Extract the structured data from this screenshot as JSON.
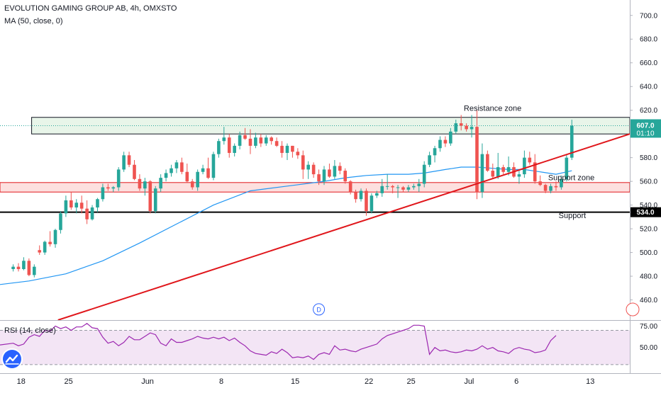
{
  "header": {
    "symbol_title": "EVOLUTION GAMING GROUP AB, 4h, OMXSTO",
    "indicator_ma": "MA (50, close, 0)",
    "indicator_rsi": "RSI (14, close)"
  },
  "colors": {
    "up": "#26a69a",
    "down": "#ef5350",
    "ma_line": "#2196f3",
    "trend_line": "#e0161b",
    "rsi_line": "#9c27b0",
    "rsi_band": "#f3e5f5",
    "resistance_fill": "#e8f5e9",
    "support_fill": "#fde0df",
    "last_price_bg": "#26a69a"
  },
  "chart_data": [
    {
      "type": "candlestick",
      "title": "EVOLUTION GAMING GROUP AB, 4h, OMXSTO",
      "y_ticks": [
        "700.0",
        "680.0",
        "660.0",
        "640.0",
        "620.0",
        "600.0",
        "580.0",
        "560.0",
        "540.0",
        "520.0",
        "500.0",
        "480.0",
        "460.0"
      ],
      "ylim": [
        443,
        713
      ],
      "x_ticks": [
        "18",
        "25",
        "Jun",
        "8",
        "15",
        "22",
        "25",
        "Jul",
        "6",
        "13"
      ],
      "x_tick_positions": [
        1.5,
        10.5,
        25.5,
        39.5,
        53.5,
        67.5,
        75.5,
        86.5,
        95.5,
        109.5
      ],
      "xlim": [
        -2.5,
        117
      ],
      "candles": [
        [
          0,
          486,
          490,
          484,
          488
        ],
        [
          1,
          488,
          491,
          484,
          486
        ],
        [
          2,
          486,
          496,
          485,
          493
        ],
        [
          3,
          493,
          495,
          480,
          481
        ],
        [
          4,
          481,
          490,
          479,
          488
        ],
        [
          5,
          502,
          506,
          498,
          500
        ],
        [
          6,
          500,
          510,
          498,
          509
        ],
        [
          7,
          509,
          518,
          505,
          507
        ],
        [
          8,
          507,
          520,
          504,
          519
        ],
        [
          9,
          519,
          535,
          516,
          533
        ],
        [
          10,
          533,
          548,
          530,
          544
        ],
        [
          11,
          544,
          551,
          536,
          538
        ],
        [
          12,
          538,
          545,
          533,
          542
        ],
        [
          13,
          542,
          548,
          533,
          537
        ],
        [
          14,
          537,
          544,
          524,
          528
        ],
        [
          15,
          528,
          540,
          527,
          538
        ],
        [
          16,
          538,
          546,
          534,
          545
        ],
        [
          17,
          545,
          558,
          543,
          555
        ],
        [
          18,
          555,
          558,
          552,
          554
        ],
        [
          19,
          554,
          556,
          551,
          555
        ],
        [
          20,
          555,
          572,
          552,
          570
        ],
        [
          21,
          570,
          585,
          568,
          582
        ],
        [
          22,
          582,
          585,
          572,
          574
        ],
        [
          23,
          574,
          578,
          561,
          562
        ],
        [
          24,
          562,
          566,
          552,
          554
        ],
        [
          25,
          554,
          563,
          548,
          560
        ],
        [
          26,
          560,
          561,
          533,
          535
        ],
        [
          27,
          535,
          556,
          533,
          554
        ],
        [
          28,
          554,
          566,
          551,
          563
        ],
        [
          29,
          563,
          570,
          560,
          567
        ],
        [
          30,
          567,
          574,
          564,
          571
        ],
        [
          31,
          571,
          578,
          567,
          576
        ],
        [
          32,
          576,
          580,
          566,
          568
        ],
        [
          33,
          568,
          575,
          559,
          560
        ],
        [
          34,
          560,
          562,
          553,
          555
        ],
        [
          35,
          555,
          570,
          552,
          568
        ],
        [
          36,
          568,
          574,
          566,
          571
        ],
        [
          37,
          571,
          580,
          562,
          563
        ],
        [
          38,
          563,
          585,
          561,
          583
        ],
        [
          39,
          583,
          596,
          580,
          594
        ],
        [
          40,
          594,
          606,
          591,
          597
        ],
        [
          41,
          597,
          600,
          580,
          584
        ],
        [
          42,
          584,
          592,
          581,
          590
        ],
        [
          43,
          590,
          602,
          587,
          599
        ],
        [
          44,
          599,
          605,
          595,
          596
        ],
        [
          45,
          596,
          604,
          583,
          590
        ],
        [
          46,
          590,
          601,
          588,
          597
        ],
        [
          47,
          597,
          600,
          589,
          592
        ],
        [
          48,
          592,
          599,
          590,
          597
        ],
        [
          49,
          597,
          598,
          591,
          594
        ],
        [
          50,
          594,
          597,
          589,
          590
        ],
        [
          51,
          590,
          594,
          580,
          584
        ],
        [
          52,
          584,
          592,
          578,
          590
        ],
        [
          53,
          590,
          590,
          580,
          585
        ],
        [
          54,
          585,
          588,
          579,
          582
        ],
        [
          55,
          582,
          586,
          562,
          570
        ],
        [
          56,
          570,
          577,
          562,
          574
        ],
        [
          57,
          574,
          576,
          563,
          566
        ],
        [
          58,
          566,
          570,
          557,
          560
        ],
        [
          59,
          560,
          573,
          557,
          570
        ],
        [
          60,
          570,
          575,
          563,
          564
        ],
        [
          61,
          564,
          578,
          562,
          573
        ],
        [
          62,
          573,
          576,
          566,
          569
        ],
        [
          63,
          569,
          571,
          558,
          560
        ],
        [
          64,
          560,
          561,
          549,
          551
        ],
        [
          65,
          551,
          553,
          542,
          545
        ],
        [
          66,
          545,
          554,
          543,
          552
        ],
        [
          67,
          552,
          554,
          531,
          535
        ],
        [
          68,
          535,
          550,
          533,
          548
        ],
        [
          69,
          548,
          552,
          546,
          550
        ],
        [
          70,
          550,
          562,
          547,
          556
        ],
        [
          71,
          556,
          566,
          553,
          556
        ],
        [
          72,
          556,
          557,
          550,
          555
        ],
        [
          73,
          555,
          557,
          546,
          555
        ],
        [
          74,
          555,
          556,
          551,
          553
        ],
        [
          75,
          553,
          557,
          551,
          555
        ],
        [
          76,
          555,
          558,
          553,
          556
        ],
        [
          77,
          556,
          562,
          551,
          558
        ],
        [
          78,
          558,
          577,
          555,
          574
        ],
        [
          79,
          574,
          585,
          572,
          582
        ],
        [
          80,
          582,
          590,
          576,
          588
        ],
        [
          81,
          588,
          598,
          585,
          595
        ],
        [
          82,
          595,
          598,
          589,
          592
        ],
        [
          83,
          592,
          605,
          590,
          602
        ],
        [
          84,
          602,
          612,
          600,
          609
        ],
        [
          85,
          609,
          616,
          603,
          607
        ],
        [
          86,
          607,
          609,
          602,
          604
        ],
        [
          87,
          604,
          616,
          597,
          606
        ],
        [
          88,
          606,
          620,
          545,
          551
        ],
        [
          89,
          551,
          592,
          546,
          583
        ],
        [
          90,
          583,
          586,
          568,
          569
        ],
        [
          91,
          569,
          575,
          562,
          564
        ],
        [
          92,
          564,
          584,
          562,
          572
        ],
        [
          93,
          572,
          574,
          566,
          568
        ],
        [
          94,
          568,
          581,
          565,
          572
        ],
        [
          95,
          572,
          576,
          563,
          564
        ],
        [
          96,
          564,
          569,
          558,
          566
        ],
        [
          97,
          566,
          586,
          563,
          580
        ],
        [
          98,
          580,
          585,
          574,
          576
        ],
        [
          99,
          576,
          583,
          558,
          560
        ],
        [
          100,
          560,
          565,
          556,
          557
        ],
        [
          101,
          557,
          558,
          550,
          552
        ],
        [
          102,
          552,
          558,
          550,
          556
        ],
        [
          103,
          556,
          560,
          552,
          555
        ],
        [
          104,
          555,
          565,
          553,
          562
        ],
        [
          105,
          562,
          583,
          560,
          580
        ],
        [
          106,
          580,
          612,
          578,
          607
        ]
      ],
      "ma": [
        [
          -2.5,
          473
        ],
        [
          3,
          476
        ],
        [
          10,
          482
        ],
        [
          17,
          493
        ],
        [
          24,
          508
        ],
        [
          31,
          524
        ],
        [
          38,
          540
        ],
        [
          45,
          552
        ],
        [
          52,
          556
        ],
        [
          59,
          560
        ],
        [
          63,
          563
        ],
        [
          67,
          565
        ],
        [
          71,
          566
        ],
        [
          75,
          566
        ],
        [
          78,
          567
        ],
        [
          82,
          570
        ],
        [
          85,
          572
        ],
        [
          88,
          572
        ],
        [
          91,
          571
        ],
        [
          94,
          570
        ],
        [
          97,
          570
        ],
        [
          100,
          568
        ],
        [
          103,
          566
        ],
        [
          106,
          569
        ]
      ],
      "resistance_zone": {
        "label": "Resistance zone",
        "low": 600,
        "high": 614,
        "x_start": 3.5,
        "x_end": 117
      },
      "support_zone": {
        "label": "Support zone",
        "low": 551,
        "high": 559,
        "x_start": -2.5,
        "x_end": 117
      },
      "support_line": {
        "label": "Support",
        "price": 534,
        "price_label": "534.0"
      },
      "trend_line": {
        "from": [
          8.5,
          443
        ],
        "to": [
          117,
          600
        ]
      },
      "last_price": {
        "value": "607.0",
        "countdown": "01:10"
      },
      "marker": {
        "label": "D",
        "x": 58,
        "price": 452
      }
    },
    {
      "type": "line",
      "title": "RSI (14, close)",
      "y_ticks": [
        "75.00",
        "50.00"
      ],
      "band": [
        30,
        70
      ],
      "ylim": [
        20,
        82
      ],
      "rsi": [
        [
          -2.5,
          53
        ],
        [
          0,
          55
        ],
        [
          1,
          52
        ],
        [
          2,
          54
        ],
        [
          3,
          62
        ],
        [
          4,
          65
        ],
        [
          5,
          63
        ],
        [
          6,
          70
        ],
        [
          7,
          69
        ],
        [
          8,
          75
        ],
        [
          9,
          72
        ],
        [
          10,
          74
        ],
        [
          11,
          70
        ],
        [
          12,
          74
        ],
        [
          13,
          74
        ],
        [
          14,
          78
        ],
        [
          15,
          73
        ],
        [
          16,
          72
        ],
        [
          17,
          62
        ],
        [
          18,
          55
        ],
        [
          19,
          57
        ],
        [
          20,
          52
        ],
        [
          21,
          56
        ],
        [
          22,
          63
        ],
        [
          23,
          59
        ],
        [
          24,
          59
        ],
        [
          25,
          63
        ],
        [
          26,
          67
        ],
        [
          27,
          65
        ],
        [
          28,
          55
        ],
        [
          29,
          52
        ],
        [
          30,
          60
        ],
        [
          31,
          56
        ],
        [
          32,
          56
        ],
        [
          33,
          58
        ],
        [
          34,
          60
        ],
        [
          35,
          63
        ],
        [
          36,
          61
        ],
        [
          37,
          60
        ],
        [
          38,
          62
        ],
        [
          39,
          60
        ],
        [
          40,
          62
        ],
        [
          41,
          58
        ],
        [
          42,
          61
        ],
        [
          43,
          56
        ],
        [
          44,
          52
        ],
        [
          45,
          46
        ],
        [
          46,
          43
        ],
        [
          47,
          42
        ],
        [
          48,
          41
        ],
        [
          49,
          45
        ],
        [
          50,
          43
        ],
        [
          51,
          48
        ],
        [
          52,
          44
        ],
        [
          53,
          38
        ],
        [
          54,
          39
        ],
        [
          55,
          38
        ],
        [
          56,
          40
        ],
        [
          57,
          36
        ],
        [
          58,
          42
        ],
        [
          59,
          44
        ],
        [
          60,
          42
        ],
        [
          61,
          52
        ],
        [
          62,
          47
        ],
        [
          63,
          48
        ],
        [
          64,
          46
        ],
        [
          65,
          45
        ],
        [
          66,
          48
        ],
        [
          67,
          50
        ],
        [
          68,
          52
        ],
        [
          69,
          54
        ],
        [
          70,
          60
        ],
        [
          71,
          64
        ],
        [
          72,
          66
        ],
        [
          73,
          68
        ],
        [
          74,
          70
        ],
        [
          75,
          72
        ],
        [
          76,
          76
        ],
        [
          77,
          76
        ],
        [
          78,
          75
        ],
        [
          79,
          42
        ],
        [
          80,
          50
        ],
        [
          81,
          46
        ],
        [
          82,
          47
        ],
        [
          83,
          45
        ],
        [
          84,
          44
        ],
        [
          85,
          45
        ],
        [
          86,
          47
        ],
        [
          87,
          46
        ],
        [
          88,
          48
        ],
        [
          89,
          52
        ],
        [
          90,
          48
        ],
        [
          91,
          50
        ],
        [
          92,
          46
        ],
        [
          93,
          45
        ],
        [
          94,
          43
        ],
        [
          95,
          48
        ],
        [
          96,
          50
        ],
        [
          97,
          48
        ],
        [
          98,
          47
        ],
        [
          99,
          44
        ],
        [
          100,
          45
        ],
        [
          101,
          47
        ],
        [
          102,
          58
        ],
        [
          103,
          64
        ]
      ]
    }
  ]
}
